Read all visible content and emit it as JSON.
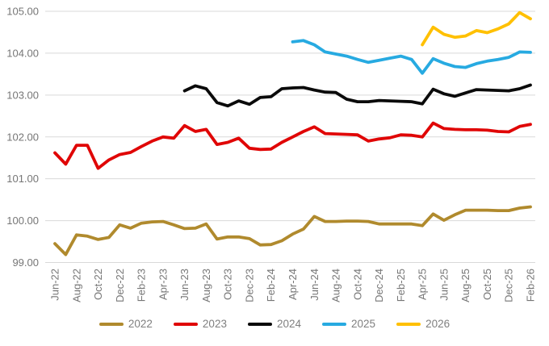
{
  "chart": {
    "background_color": "#ffffff",
    "gridline_color": "#d9d9d9",
    "axis_label_color": "#767676",
    "legend_label_color": "#7f7f7f"
  },
  "chart_data": {
    "type": "line",
    "title": "",
    "xlabel": "",
    "ylabel": "",
    "grid": true,
    "legend_position": "bottom",
    "ylim": [
      99,
      105
    ],
    "y_tick_interval": 1,
    "y_tick_decimals": 2,
    "x_tick_step": 2,
    "x": [
      "Jun-22",
      "Jul-22",
      "Aug-22",
      "Sep-22",
      "Oct-22",
      "Nov-22",
      "Dec-22",
      "Jan-23",
      "Feb-23",
      "Mar-23",
      "Apr-23",
      "May-23",
      "Jun-23",
      "Jul-23",
      "Aug-23",
      "Sep-23",
      "Oct-23",
      "Nov-23",
      "Dec-23",
      "Jan-24",
      "Feb-24",
      "Mar-24",
      "Apr-24",
      "May-24",
      "Jun-24",
      "Jul-24",
      "Aug-24",
      "Sep-24",
      "Oct-24",
      "Nov-24",
      "Dec-24",
      "Jan-25",
      "Feb-25",
      "Mar-25",
      "Apr-25",
      "May-25",
      "Jun-25",
      "Jul-25",
      "Aug-25",
      "Sep-25",
      "Oct-25",
      "Nov-25",
      "Dec-25",
      "Jan-26",
      "Feb-26"
    ],
    "series": [
      {
        "name": "2022",
        "color": "#b08a2d",
        "start_index": 0,
        "values": [
          99.45,
          99.19,
          99.66,
          99.63,
          99.55,
          99.6,
          99.9,
          99.82,
          99.94,
          99.97,
          99.98,
          99.9,
          99.81,
          99.82,
          99.92,
          99.56,
          99.61,
          99.61,
          99.57,
          99.42,
          99.43,
          99.52,
          99.68,
          99.8,
          100.1,
          99.98,
          99.98,
          99.99,
          99.99,
          99.98,
          99.92,
          99.92,
          99.92,
          99.92,
          99.88,
          100.16,
          100.01,
          100.14,
          100.25,
          100.25,
          100.25,
          100.24,
          100.24,
          100.3,
          100.33
        ]
      },
      {
        "name": "2023",
        "color": "#e00606",
        "start_index": 0,
        "values": [
          101.62,
          101.35,
          101.8,
          101.8,
          101.25,
          101.45,
          101.58,
          101.63,
          101.77,
          101.9,
          102.0,
          101.97,
          102.27,
          102.13,
          102.18,
          101.82,
          101.87,
          101.97,
          101.73,
          101.7,
          101.71,
          101.87,
          102.0,
          102.13,
          102.24,
          102.08,
          102.07,
          102.06,
          102.05,
          101.9,
          101.95,
          101.98,
          102.05,
          102.04,
          102.0,
          102.33,
          102.2,
          102.18,
          102.17,
          102.17,
          102.16,
          102.13,
          102.12,
          102.25,
          102.3
        ]
      },
      {
        "name": "2024",
        "color": "#0a0a0a",
        "start_index": 12,
        "values": [
          103.1,
          103.22,
          103.15,
          102.82,
          102.74,
          102.86,
          102.78,
          102.94,
          102.96,
          103.15,
          103.17,
          103.18,
          103.12,
          103.07,
          103.06,
          102.9,
          102.84,
          102.84,
          102.87,
          102.86,
          102.85,
          102.84,
          102.79,
          103.14,
          103.03,
          102.97,
          103.05,
          103.13,
          103.12,
          103.11,
          103.1,
          103.15,
          103.24
        ]
      },
      {
        "name": "2025",
        "color": "#27aae1",
        "start_index": 22,
        "values": [
          104.27,
          104.3,
          104.2,
          104.03,
          103.98,
          103.93,
          103.85,
          103.78,
          103.83,
          103.88,
          103.93,
          103.85,
          103.52,
          103.87,
          103.76,
          103.68,
          103.66,
          103.75,
          103.81,
          103.85,
          103.9,
          104.03,
          104.02
        ]
      },
      {
        "name": "2026",
        "color": "#ffc000",
        "start_index": 34,
        "values": [
          104.2,
          104.62,
          104.45,
          104.38,
          104.41,
          104.54,
          104.49,
          104.58,
          104.7,
          104.97,
          104.82
        ]
      }
    ]
  }
}
